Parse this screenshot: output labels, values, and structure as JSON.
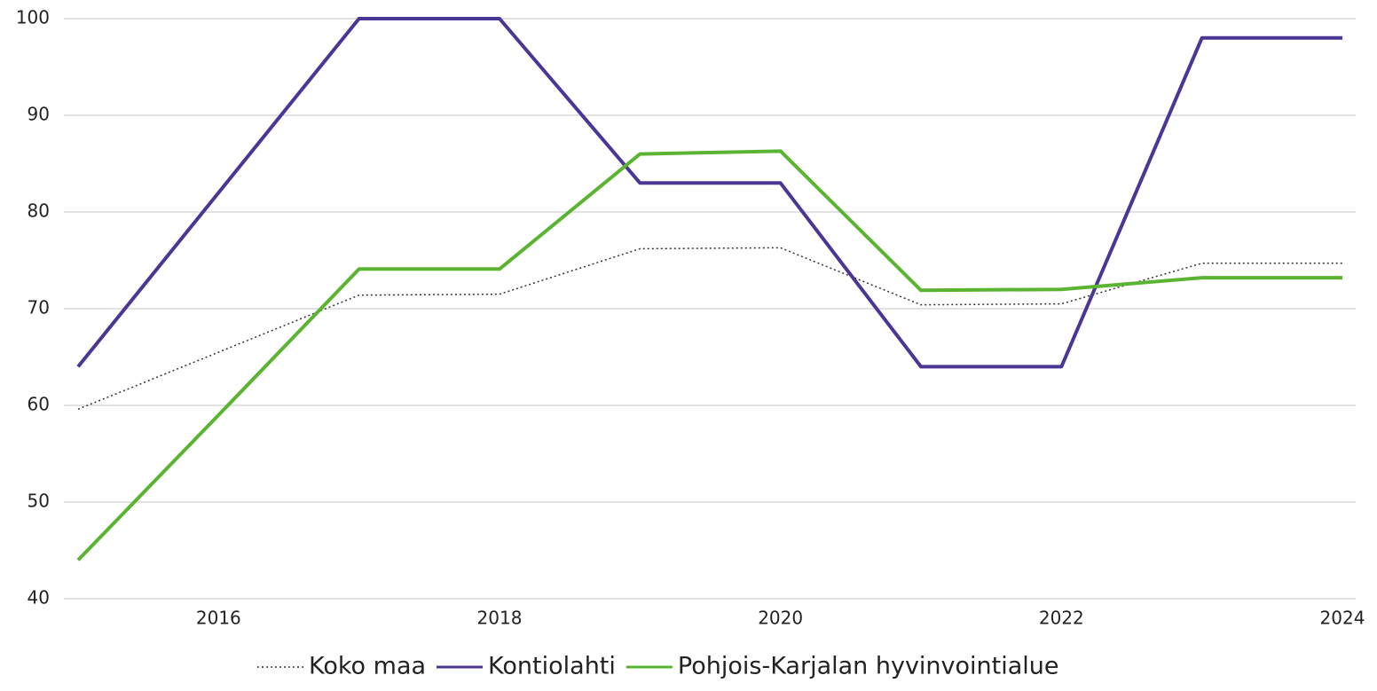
{
  "chart_data": {
    "type": "line",
    "x": [
      2015,
      2016,
      2017,
      2018,
      2019,
      2020,
      2021,
      2022,
      2023,
      2024
    ],
    "series": [
      {
        "name": "Koko maa",
        "color": "#333333",
        "dash": "dotted",
        "values": [
          59.6,
          65.5,
          71.4,
          71.5,
          76.2,
          76.3,
          70.4,
          70.5,
          74.7,
          74.7
        ]
      },
      {
        "name": "Kontiolahti",
        "color": "#4b3595",
        "values": [
          64,
          82,
          100,
          100,
          83,
          83,
          64,
          64,
          98,
          98
        ]
      },
      {
        "name": "Pohjois-Karjalan hyvinvointialue",
        "color": "#5bb431",
        "values": [
          44,
          59,
          74.1,
          74.1,
          86,
          86.3,
          71.9,
          72,
          73.2,
          73.2
        ]
      }
    ],
    "xlim": [
      2015,
      2024
    ],
    "xticks": [
      2016,
      2018,
      2020,
      2022,
      2024
    ],
    "ylim": [
      40,
      100
    ],
    "yticks": [
      40,
      50,
      60,
      70,
      80,
      90,
      100
    ],
    "grid": true,
    "legend": "bottom"
  }
}
